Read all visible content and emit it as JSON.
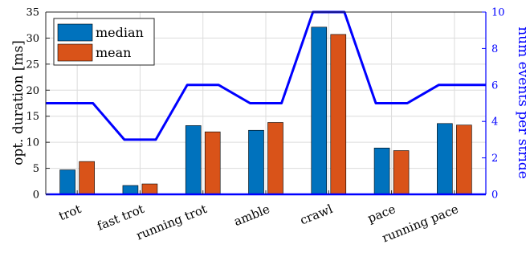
{
  "chart_data": {
    "type": "bar",
    "categories": [
      "trot",
      "fast trot",
      "running trot",
      "amble",
      "crawl",
      "pace",
      "running pace"
    ],
    "series": [
      {
        "name": "median",
        "values": [
          4.7,
          1.7,
          13.2,
          12.3,
          32.1,
          8.9,
          13.6
        ],
        "color": "#0072bd",
        "axis": "left"
      },
      {
        "name": "mean",
        "values": [
          6.3,
          2.0,
          12.0,
          13.8,
          30.7,
          8.4,
          13.3
        ],
        "color": "#d95319",
        "axis": "left"
      }
    ],
    "line_series": {
      "values": [
        5,
        3,
        6,
        5,
        10,
        5,
        6
      ],
      "color": "#0000ff",
      "axis": "right"
    },
    "ylabel": "opt. duration [ms]",
    "ylabel_right": "num events per stride",
    "ylim": [
      0,
      35
    ],
    "ylim_right": [
      0,
      10
    ],
    "yticks": [
      0,
      5,
      10,
      15,
      20,
      25,
      30,
      35
    ],
    "yticks_right": [
      0,
      2,
      4,
      6,
      8,
      10
    ],
    "grid": true,
    "legend_position": "top-left"
  }
}
